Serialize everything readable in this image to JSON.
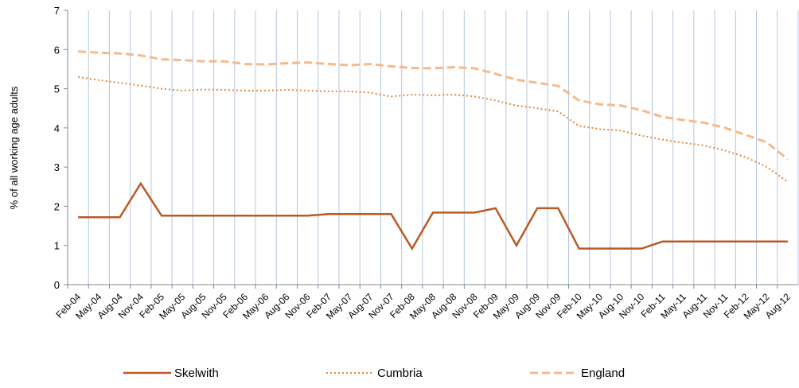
{
  "chart_data": {
    "type": "line",
    "ylabel": "% of all working age adults",
    "categories": [
      "Feb-04",
      "May-04",
      "Aug-04",
      "Nov-04",
      "Feb-05",
      "May-05",
      "Aug-05",
      "Nov-05",
      "Feb-06",
      "May-06",
      "Aug-06",
      "Nov-06",
      "Feb-07",
      "May-07",
      "Aug-07",
      "Nov-07",
      "Feb-08",
      "May-08",
      "Aug-08",
      "Nov-08",
      "Feb-09",
      "May-09",
      "Aug-09",
      "Nov-09",
      "Feb-10",
      "May-10",
      "Aug-10",
      "Nov-10",
      "Feb-11",
      "May-11",
      "Aug-11",
      "Nov-11",
      "Feb-12",
      "May-12",
      "Aug-12"
    ],
    "series": [
      {
        "name": "Skelwith",
        "color": "#b85b26",
        "style": "solid",
        "values": [
          1.72,
          1.72,
          1.72,
          2.58,
          1.76,
          1.76,
          1.76,
          1.76,
          1.76,
          1.76,
          1.76,
          1.76,
          1.8,
          1.8,
          1.8,
          1.8,
          0.92,
          1.84,
          1.84,
          1.84,
          1.95,
          1.0,
          1.95,
          1.95,
          0.92,
          0.92,
          0.92,
          0.92,
          1.1,
          1.1,
          1.1,
          1.1,
          1.1,
          1.1,
          1.1
        ]
      },
      {
        "name": "Cumbria",
        "color": "#e48a3c",
        "style": "dotted",
        "values": [
          5.3,
          5.22,
          5.15,
          5.08,
          5.0,
          4.95,
          4.98,
          4.97,
          4.95,
          4.95,
          4.97,
          4.95,
          4.93,
          4.93,
          4.9,
          4.8,
          4.85,
          4.83,
          4.85,
          4.8,
          4.7,
          4.57,
          4.5,
          4.42,
          4.05,
          3.97,
          3.93,
          3.8,
          3.7,
          3.62,
          3.55,
          3.42,
          3.25,
          3.0,
          2.62
        ]
      },
      {
        "name": "England",
        "color": "#f5b98b",
        "style": "dashed",
        "values": [
          5.95,
          5.92,
          5.9,
          5.85,
          5.75,
          5.73,
          5.7,
          5.7,
          5.63,
          5.62,
          5.65,
          5.67,
          5.63,
          5.6,
          5.63,
          5.57,
          5.53,
          5.52,
          5.55,
          5.52,
          5.38,
          5.23,
          5.15,
          5.07,
          4.7,
          4.6,
          4.57,
          4.45,
          4.28,
          4.2,
          4.13,
          4.0,
          3.82,
          3.63,
          3.2
        ]
      }
    ],
    "ylim": [
      0,
      7
    ],
    "yticks": [
      0,
      1,
      2,
      3,
      4,
      5,
      6,
      7
    ],
    "grid": "vertical",
    "legend": "bottom"
  }
}
